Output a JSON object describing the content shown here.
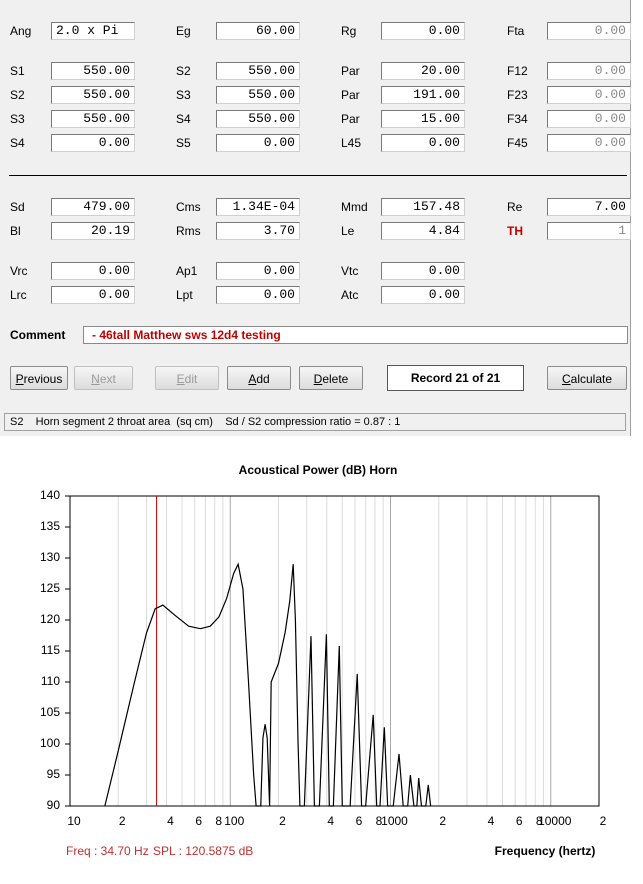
{
  "form": {
    "rows": [
      [
        {
          "label": "Ang",
          "value": "2.0 x Pi",
          "align": "left"
        },
        {
          "label": "Eg",
          "value": "60.00"
        },
        {
          "label": "Rg",
          "value": "0.00"
        },
        {
          "label": "Fta",
          "value": "0.00",
          "disabled": true
        }
      ],
      [
        {
          "label": "S1",
          "value": "550.00"
        },
        {
          "label": "S2",
          "value": "550.00"
        },
        {
          "label": "Par",
          "value": "20.00"
        },
        {
          "label": "F12",
          "value": "0.00",
          "disabled": true
        }
      ],
      [
        {
          "label": "S2",
          "value": "550.00"
        },
        {
          "label": "S3",
          "value": "550.00"
        },
        {
          "label": "Par",
          "value": "191.00"
        },
        {
          "label": "F23",
          "value": "0.00",
          "disabled": true
        }
      ],
      [
        {
          "label": "S3",
          "value": "550.00"
        },
        {
          "label": "S4",
          "value": "550.00"
        },
        {
          "label": "Par",
          "value": "15.00"
        },
        {
          "label": "F34",
          "value": "0.00",
          "disabled": true
        }
      ],
      [
        {
          "label": "S4",
          "value": "0.00"
        },
        {
          "label": "S5",
          "value": "0.00"
        },
        {
          "label": "L45",
          "value": "0.00"
        },
        {
          "label": "F45",
          "value": "0.00",
          "disabled": true
        }
      ],
      [
        {
          "label": "Sd",
          "value": "479.00"
        },
        {
          "label": "Cms",
          "value": "1.34E-04"
        },
        {
          "label": "Mmd",
          "value": "157.48"
        },
        {
          "label": "Re",
          "value": "7.00"
        }
      ],
      [
        {
          "label": "Bl",
          "value": "20.19"
        },
        {
          "label": "Rms",
          "value": "3.70"
        },
        {
          "label": "Le",
          "value": "4.84"
        },
        {
          "label": "TH",
          "value": "1",
          "disabled": true,
          "label_color": "#c00000"
        }
      ],
      [
        {
          "label": "Vrc",
          "value": "0.00"
        },
        {
          "label": "Ap1",
          "value": "0.00"
        },
        {
          "label": "Vtc",
          "value": "0.00"
        }
      ],
      [
        {
          "label": "Lrc",
          "value": "0.00"
        },
        {
          "label": "Lpt",
          "value": "0.00"
        },
        {
          "label": "Atc",
          "value": "0.00"
        }
      ]
    ],
    "comment_label": "Comment",
    "comment": "- 46tall Matthew sws 12d4 testing",
    "buttons": [
      {
        "label": "Previous"
      },
      {
        "label": "Next",
        "disabled": true
      },
      {
        "label": "Edit",
        "disabled": true
      },
      {
        "label": "Add"
      },
      {
        "label": "Delete"
      },
      {
        "label": "Calculate"
      }
    ],
    "record": "Record 21 of 21",
    "status": "S2    Horn segment 2 throat area  (sq cm)    Sd / S2 compression ratio = 0.87 : 1"
  },
  "chart_data": {
    "type": "line",
    "title": "Acoustical Power (dB)   Horn",
    "xlabel": "Frequency (hertz)",
    "log_x": true,
    "grid": true,
    "color": "#000000",
    "x": [
      16.5,
      20,
      25,
      30,
      34,
      38,
      45,
      55,
      65,
      75,
      85,
      95,
      105,
      112,
      120,
      130,
      140,
      145,
      155,
      160,
      165,
      170,
      176,
      180,
      200,
      220,
      235,
      247,
      255,
      265,
      272,
      290,
      319,
      335,
      360,
      398,
      415,
      440,
      479,
      500,
      560,
      620,
      660,
      700,
      780,
      820,
      860,
      915,
      960,
      1040,
      1130,
      1200,
      1280,
      1330,
      1400,
      1460,
      1500,
      1560,
      1660,
      1720,
      1780
    ],
    "values": [
      90,
      98.9,
      109.5,
      117.9,
      121.8,
      122.4,
      120.8,
      119,
      118.6,
      119,
      120.5,
      123.5,
      127.5,
      129,
      125,
      110,
      95,
      90,
      90,
      101,
      103.2,
      101,
      90,
      110,
      113,
      118,
      123,
      129,
      120,
      100,
      90,
      90,
      117.4,
      90,
      90,
      117.7,
      90,
      90,
      115.8,
      90,
      90,
      111.3,
      90,
      90,
      104.7,
      90,
      90,
      102.7,
      90,
      90,
      98.4,
      90,
      90,
      95,
      90,
      90,
      94.5,
      90,
      90,
      93.4,
      90
    ],
    "xlim": [
      10,
      20000
    ],
    "xticks": [
      10,
      {
        "value": 20,
        "label": "2"
      },
      {
        "value": 40,
        "label": "4"
      },
      {
        "value": 60,
        "label": "6"
      },
      {
        "value": 80,
        "label": "8"
      },
      100,
      {
        "value": 200,
        "label": "2"
      },
      {
        "value": 400,
        "label": "4"
      },
      {
        "value": 600,
        "label": "6"
      },
      {
        "value": 800,
        "label": "8"
      },
      1000,
      {
        "value": 2000,
        "label": "2"
      },
      {
        "value": 4000,
        "label": "4"
      },
      {
        "value": 6000,
        "label": "6"
      },
      {
        "value": 8000,
        "label": "8"
      },
      10000,
      {
        "value": 20000,
        "label": "2"
      }
    ],
    "xminorticks": [
      30,
      50,
      70,
      90,
      300,
      500,
      700,
      900,
      3000,
      5000,
      7000,
      9000
    ],
    "ylim": [
      90,
      140
    ],
    "yticks": [
      90,
      95,
      100,
      105,
      110,
      115,
      120,
      125,
      130,
      135,
      140
    ],
    "marker": {
      "x": 34.7,
      "color": "#c00000"
    },
    "readouts": [
      "Freq : 34.70 Hz",
      "SPL : 120.5875 dB"
    ]
  }
}
